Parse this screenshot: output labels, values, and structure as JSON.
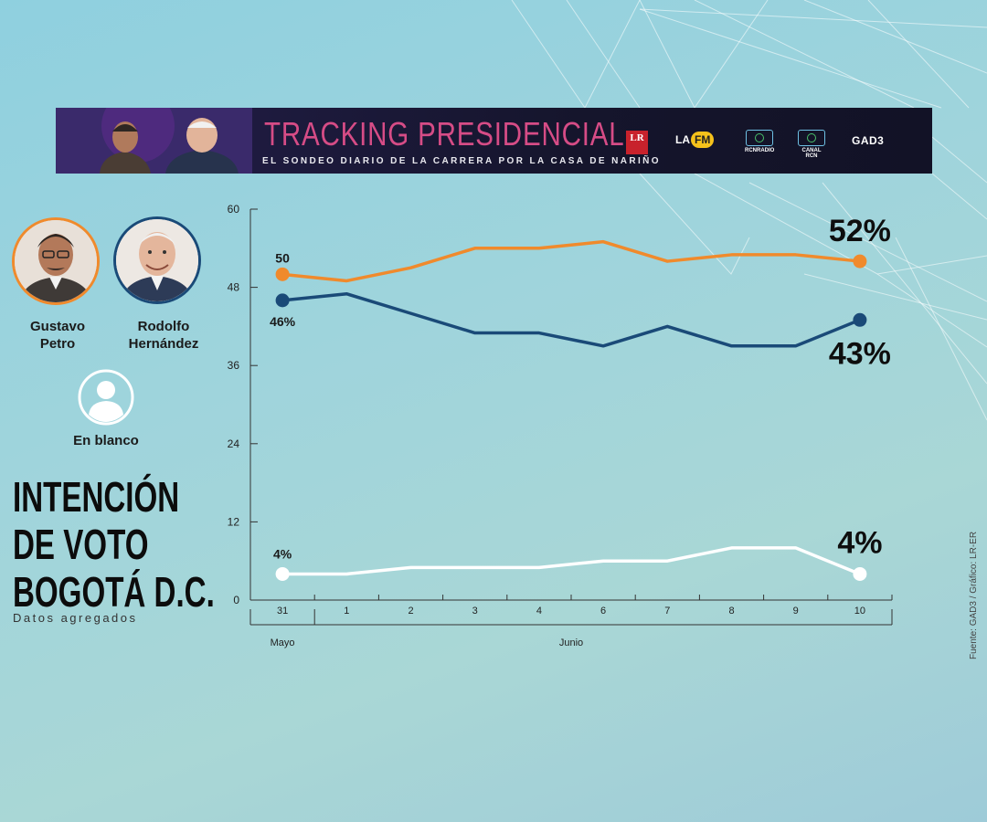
{
  "banner": {
    "title": "TRACKING PRESIDENCIAL",
    "subtitle": "EL SONDEO DIARIO DE LA CARRERA POR LA CASA DE NARIÑO",
    "logos": {
      "lr": "LR",
      "lafm_la": "LA",
      "lafm_fm": "FM",
      "rcn_radio": "RCNRADIO",
      "canal_rcn": "CANAL RCN",
      "gad3": "GAD3"
    }
  },
  "legend": {
    "petro": "Gustavo Petro",
    "rodolfo": "Rodolfo Hernández",
    "blank": "En blanco"
  },
  "headline": {
    "line1": "INTENCIÓN",
    "line2": "DE VOTO",
    "line3": "BOGOTÁ D.C.",
    "subtitle": "Datos agregados"
  },
  "source": "Fuente: GAD3 / Gráfico: LR-ER",
  "colors": {
    "petro": "#f08a2c",
    "rodolfo": "#1a4a78",
    "blank": "#ffffff"
  },
  "chart_data": {
    "type": "line",
    "x": [
      "31",
      "1",
      "2",
      "3",
      "4",
      "6",
      "7",
      "8",
      "9",
      "10"
    ],
    "month_labels": [
      "Mayo",
      "Junio"
    ],
    "ylim": [
      0,
      60
    ],
    "yticks": [
      "0",
      "12",
      "24",
      "36",
      "48",
      "60"
    ],
    "series": [
      {
        "key": "petro",
        "values": [
          50,
          49,
          51,
          54,
          54,
          55,
          52,
          53,
          53,
          52
        ],
        "start_label": "50",
        "end_label": "52%"
      },
      {
        "key": "rodolfo",
        "values": [
          46,
          47,
          44,
          41,
          41,
          39,
          42,
          39,
          39,
          43
        ],
        "start_label": "46%",
        "end_label": "43%"
      },
      {
        "key": "blank",
        "values": [
          4,
          4,
          5,
          5,
          5,
          6,
          6,
          8,
          8,
          4
        ],
        "start_label": "4%",
        "end_label": "4%"
      }
    ]
  }
}
